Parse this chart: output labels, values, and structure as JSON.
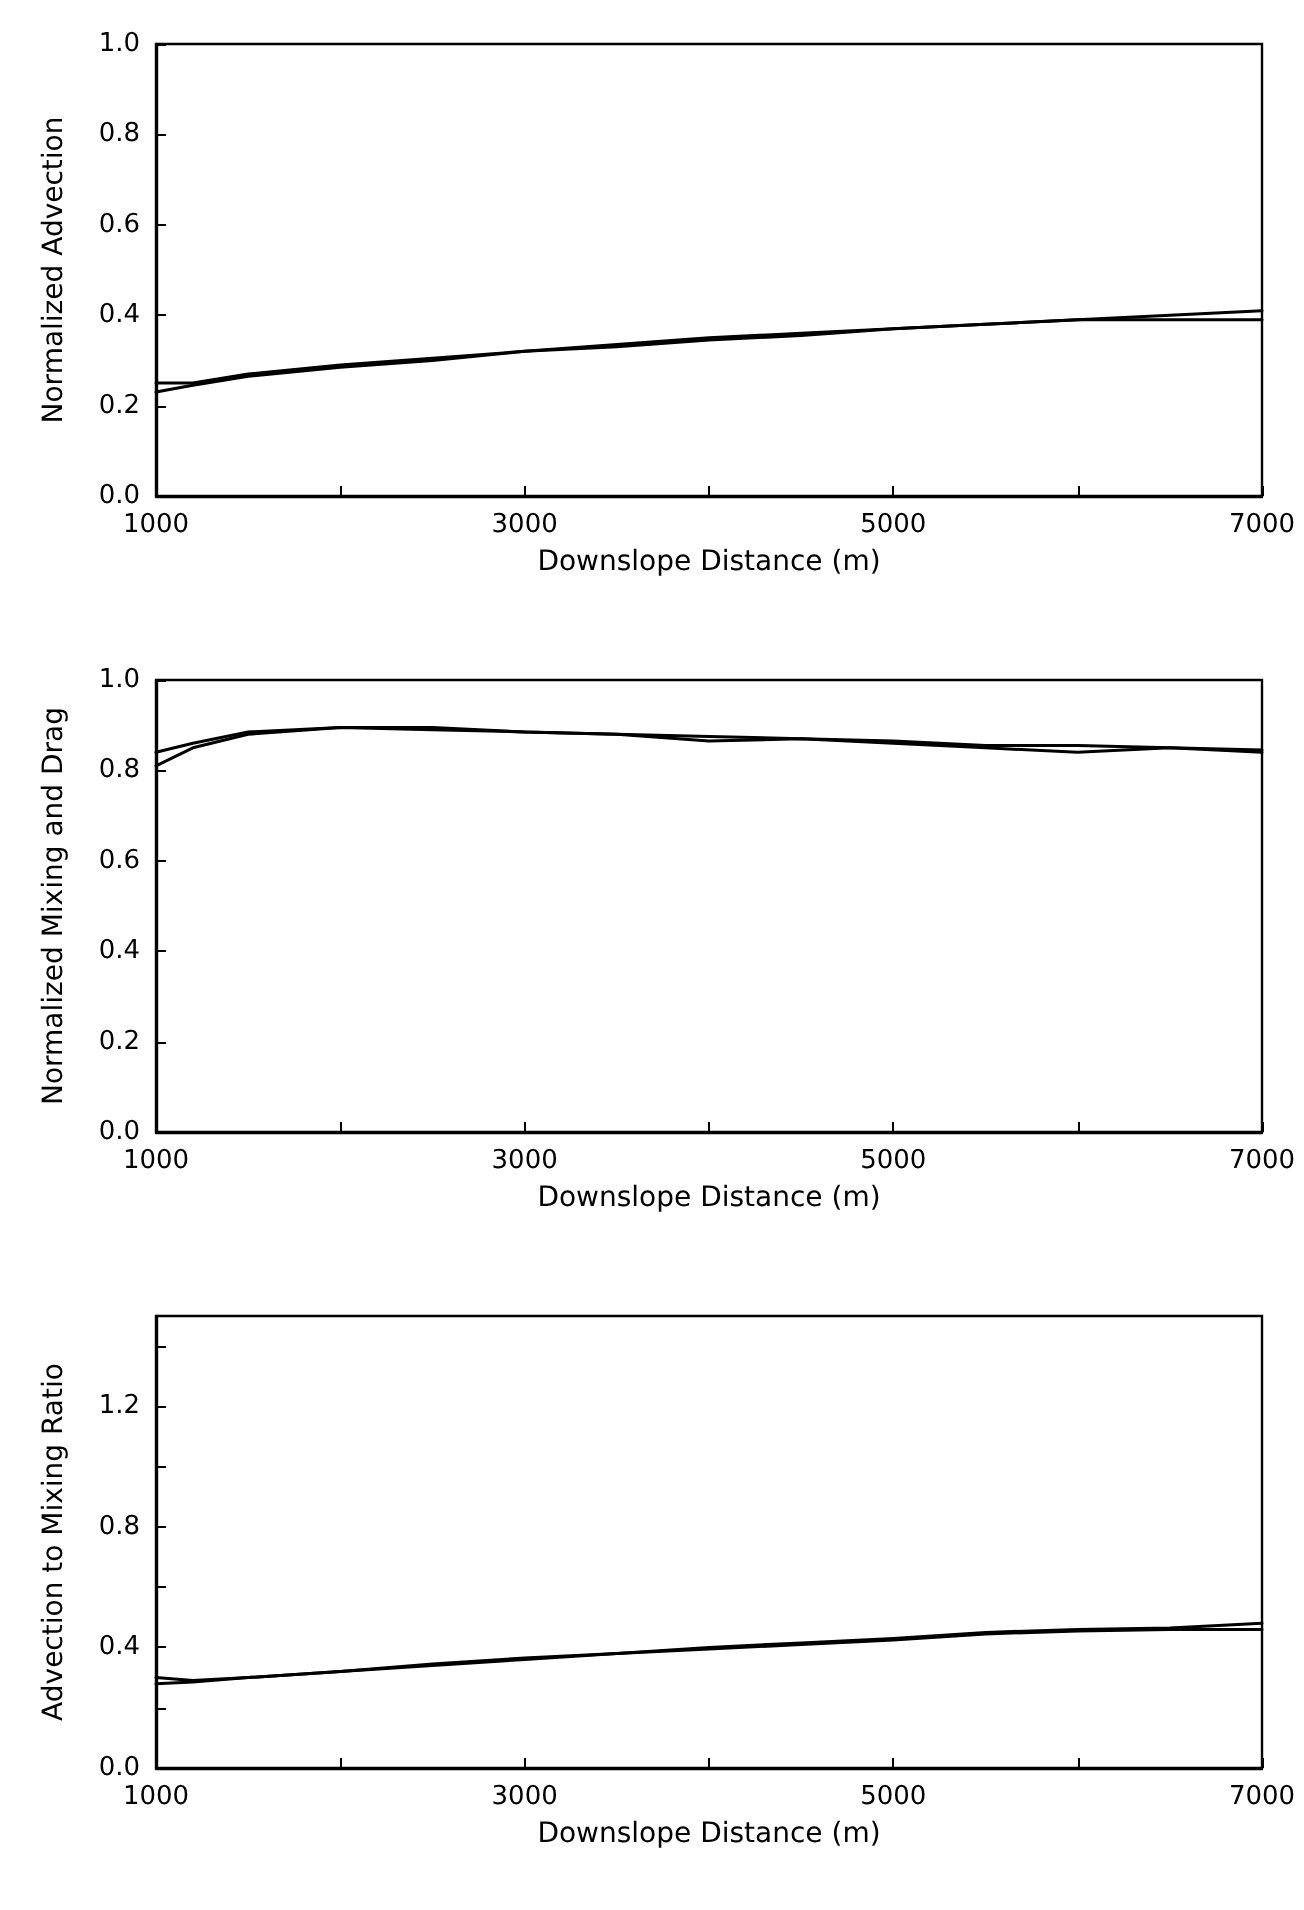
{
  "chart_data": [
    {
      "type": "line",
      "xlabel": "Downslope Distance (m)",
      "ylabel": "Normalized Advection",
      "x": [
        1000,
        1200,
        1500,
        2000,
        2500,
        3000,
        3500,
        4000,
        4500,
        5000,
        5500,
        6000,
        6500,
        7000
      ],
      "series": [
        {
          "color": "#000000",
          "values": [
            0.25,
            0.25,
            0.27,
            0.29,
            0.305,
            0.32,
            0.335,
            0.35,
            0.36,
            0.37,
            0.38,
            0.39,
            0.4,
            0.41
          ]
        },
        {
          "color": "#000000",
          "values": [
            0.23,
            0.245,
            0.265,
            0.285,
            0.3,
            0.32,
            0.33,
            0.345,
            0.355,
            0.37,
            0.38,
            0.39,
            0.39,
            0.39
          ]
        }
      ],
      "xlim": [
        1000,
        7000
      ],
      "xticks": [
        1000,
        {
          "value": 2000,
          "label": null
        },
        3000,
        {
          "value": 4000,
          "label": null
        },
        5000,
        {
          "value": 6000,
          "label": null
        },
        7000
      ],
      "ylim": [
        0,
        1
      ],
      "yticks": [
        {
          "value": 0,
          "label": "0.0"
        },
        {
          "value": 0.2,
          "label": "0.2"
        },
        {
          "value": 0.4,
          "label": "0.4"
        },
        {
          "value": 0.6,
          "label": "0.6"
        },
        {
          "value": 0.8,
          "label": "0.8"
        },
        {
          "value": 1,
          "label": "1.0"
        }
      ],
      "grid": false,
      "marker": "none",
      "line_style": "solid"
    },
    {
      "type": "line",
      "xlabel": "Downslope Distance (m)",
      "ylabel": "Normalized Mixing and Drag",
      "x": [
        1000,
        1200,
        1500,
        2000,
        2500,
        3000,
        3500,
        4000,
        4500,
        5000,
        5500,
        6000,
        6500,
        7000
      ],
      "series": [
        {
          "color": "#000000",
          "values": [
            0.84,
            0.86,
            0.885,
            0.895,
            0.895,
            0.885,
            0.88,
            0.875,
            0.87,
            0.865,
            0.855,
            0.855,
            0.85,
            0.845
          ]
        },
        {
          "color": "#000000",
          "values": [
            0.81,
            0.85,
            0.88,
            0.895,
            0.89,
            0.885,
            0.88,
            0.865,
            0.87,
            0.86,
            0.85,
            0.84,
            0.85,
            0.84
          ]
        }
      ],
      "xlim": [
        1000,
        7000
      ],
      "xticks": [
        1000,
        {
          "value": 2000,
          "label": null
        },
        3000,
        {
          "value": 4000,
          "label": null
        },
        5000,
        {
          "value": 6000,
          "label": null
        },
        7000
      ],
      "ylim": [
        0,
        1
      ],
      "yticks": [
        {
          "value": 0,
          "label": "0.0"
        },
        {
          "value": 0.2,
          "label": "0.2"
        },
        {
          "value": 0.4,
          "label": "0.4"
        },
        {
          "value": 0.6,
          "label": "0.6"
        },
        {
          "value": 0.8,
          "label": "0.8"
        },
        {
          "value": 1,
          "label": "1.0"
        }
      ],
      "grid": false,
      "marker": "none",
      "line_style": "solid"
    },
    {
      "type": "line",
      "xlabel": "Downslope Distance (m)",
      "ylabel": "Advection to Mixing Ratio",
      "x": [
        1000,
        1200,
        1500,
        2000,
        2500,
        3000,
        3500,
        4000,
        4500,
        5000,
        5500,
        6000,
        6500,
        7000
      ],
      "series": [
        {
          "color": "#000000",
          "values": [
            0.3,
            0.29,
            0.3,
            0.32,
            0.345,
            0.365,
            0.38,
            0.4,
            0.415,
            0.43,
            0.45,
            0.46,
            0.465,
            0.48
          ]
        },
        {
          "color": "#000000",
          "values": [
            0.28,
            0.285,
            0.3,
            0.32,
            0.34,
            0.36,
            0.38,
            0.395,
            0.41,
            0.425,
            0.445,
            0.455,
            0.46,
            0.46
          ]
        }
      ],
      "xlim": [
        1000,
        7000
      ],
      "xticks": [
        1000,
        {
          "value": 2000,
          "label": null
        },
        3000,
        {
          "value": 4000,
          "label": null
        },
        5000,
        {
          "value": 6000,
          "label": null
        },
        7000
      ],
      "ylim": [
        0,
        1.5
      ],
      "yticks": [
        {
          "value": 0,
          "label": "0.0"
        },
        {
          "value": 0.2,
          "label": null
        },
        {
          "value": 0.4,
          "label": "0.4"
        },
        {
          "value": 0.6,
          "label": null
        },
        {
          "value": 0.8,
          "label": "0.8"
        },
        {
          "value": 1,
          "label": null
        },
        {
          "value": 1.2,
          "label": "1.2"
        },
        {
          "value": 1.4,
          "label": null
        }
      ],
      "grid": false,
      "marker": "none",
      "line_style": "solid"
    }
  ]
}
